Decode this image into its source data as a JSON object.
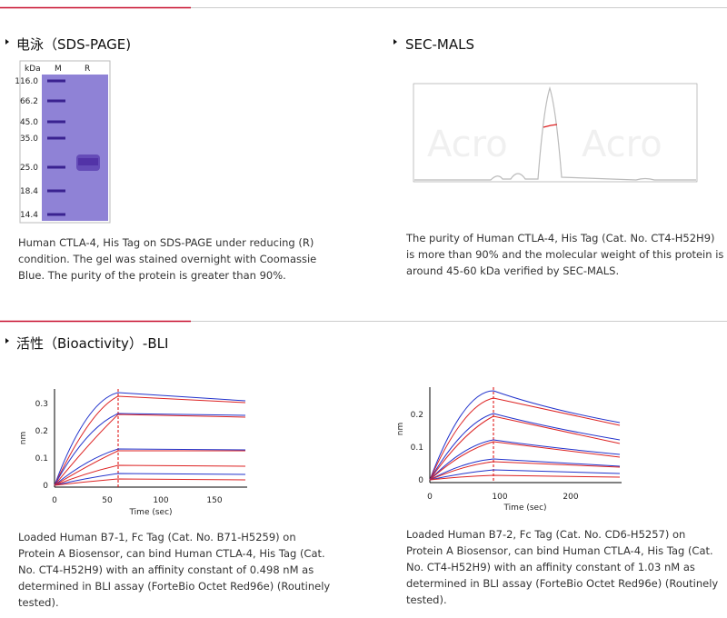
{
  "sections": [
    {
      "title": "电泳（SDS-PAGE)",
      "gel": {
        "header": [
          "kDa",
          "M",
          "R"
        ],
        "markers": [
          "116.0",
          "66.2",
          "45.0",
          "35.0",
          "25.0",
          "18.4",
          "14.4"
        ]
      },
      "caption": [
        "Human CTLA-4, His Tag on SDS-PAGE under reducing (R)",
        "condition. The gel was stained overnight with Coomassie",
        "Blue. The purity of the protein is greater than 90%."
      ]
    },
    {
      "title": "SEC-MALS",
      "caption": [
        "The purity of Human CTLA-4, His Tag (Cat. No. CT4-H52H9)",
        "is more than 90% and the molecular weight of this protein is",
        "around 45-60 kDa verified by SEC-MALS."
      ]
    },
    {
      "title": "活性（Bioactivity）-BLI",
      "plots": [
        {
          "ylabel": "nm",
          "xlabel": "Time (sec)",
          "yticks": [
            "0",
            "0.1",
            "0.2",
            "0.3"
          ],
          "xticks": [
            "0",
            "50",
            "100",
            "150"
          ],
          "caption": [
            "Loaded Human B7-1, Fc Tag (Cat. No. B71-H5259) on",
            "Protein A Biosensor, can bind Human CTLA-4, His Tag (Cat.",
            "No. CT4-H52H9) with an affinity constant of 0.498 nM as",
            "determined in BLI assay (ForteBio Octet Red96e) (Routinely",
            "tested)."
          ]
        },
        {
          "ylabel": "nm",
          "xlabel": "Time (sec)",
          "yticks": [
            "0",
            "0.1",
            "0.2"
          ],
          "xticks": [
            "0",
            "100",
            "200"
          ],
          "caption": [
            "Loaded Human B7-2, Fc Tag (Cat. No. CD6-H5257) on",
            "Protein A Biosensor, can bind Human CTLA-4, His Tag (Cat.",
            "No. CT4-H52H9) with an affinity constant of 1.03 nM as",
            "determined in BLI assay (ForteBio Octet Red96e) (Routinely",
            "tested)."
          ]
        }
      ]
    }
  ]
}
